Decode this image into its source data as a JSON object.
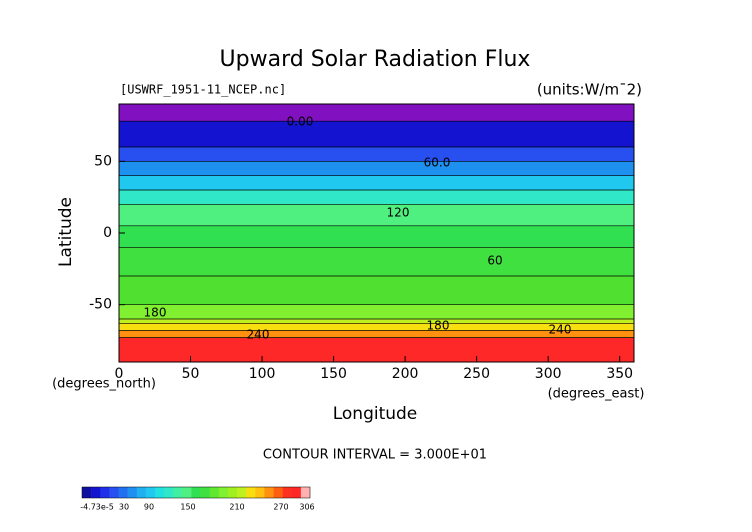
{
  "chart_data": {
    "type": "contour",
    "title": "Upward Solar Radiation Flux",
    "file_label": "[USWRF_1951-11_NCEP.nc]",
    "units_label": "(units:W/m¯2)",
    "xlabel": "Longitude",
    "ylabel": "Latitude",
    "xunit_label": "(degrees_east)",
    "yunit_label": "(degrees_north)",
    "xlim": [
      0,
      360
    ],
    "ylim": [
      -90,
      90
    ],
    "xticks": [
      0,
      50,
      100,
      150,
      200,
      250,
      300,
      350
    ],
    "yticks": [
      -50,
      0,
      50
    ],
    "bands": {
      "lat_edges": [
        90,
        78,
        60,
        50,
        40,
        30,
        20,
        5,
        -10,
        -30,
        -50,
        -60,
        -63,
        -68,
        -73,
        -90
      ],
      "colors": [
        "#8010c0",
        "#1414d0",
        "#2850f0",
        "#1e90f0",
        "#20c8f0",
        "#30e8c8",
        "#50f080",
        "#30e050",
        "#40e040",
        "#50e030",
        "#80f030",
        "#c0f020",
        "#f8e010",
        "#ff9010",
        "#ff2828"
      ]
    },
    "contour_labels": [
      "0.00",
      "60.0",
      "120",
      "60",
      "180",
      "180",
      "240",
      "240"
    ],
    "interval_label": "CONTOUR INTERVAL = 3.000E+01",
    "colorbar": {
      "colors": [
        "#1010a0",
        "#1414d0",
        "#2030e8",
        "#2850f0",
        "#2070f0",
        "#1e90f0",
        "#20b0f0",
        "#20c8f0",
        "#20e0e0",
        "#30e8c8",
        "#40f0a0",
        "#50f080",
        "#30e050",
        "#40e040",
        "#60e830",
        "#80f030",
        "#a0f020",
        "#c0f020",
        "#f8e010",
        "#ffc010",
        "#ff9010",
        "#ff6010",
        "#ff3020",
        "#ff2828",
        "#ffb0b0"
      ],
      "labels": [
        "-4.73e-5",
        "30",
        "90",
        "150",
        "210",
        "270",
        "306"
      ]
    }
  }
}
